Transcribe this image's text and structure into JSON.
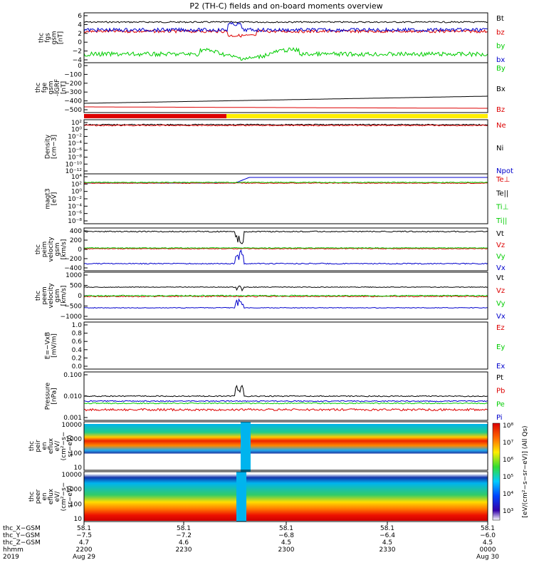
{
  "title": "P2 (TH-C) fields and on-board moments overview",
  "colors": {
    "black": "#000000",
    "red": "#dd0000",
    "green": "#00cc00",
    "blue": "#0000cc",
    "yellow": "#ffee00"
  },
  "panels": [
    {
      "ylabel": [
        "thc",
        "fgs",
        "gsm",
        "[nT]"
      ],
      "ticks": [
        "6",
        "4",
        "2",
        "0",
        "−2",
        "−4"
      ],
      "legend": [
        {
          "t": "Bt",
          "c": "black"
        },
        {
          "t": "bz",
          "c": "red"
        },
        {
          "t": "by",
          "c": "green"
        },
        {
          "t": "bx",
          "c": "blue"
        }
      ]
    },
    {
      "ylabel": [
        "thc",
        "fge",
        "gsm",
        "-IGRF",
        "[nT]"
      ],
      "ticks": [
        "0",
        "−100",
        "−200",
        "−300",
        "−400",
        "−500"
      ],
      "legend": [
        {
          "t": "By",
          "c": "green"
        },
        {
          "t": "Bx",
          "c": "black"
        },
        {
          "t": "Bz",
          "c": "red"
        }
      ]
    },
    {
      "ylabel": [
        "Density",
        "[cm−3]"
      ],
      "ticks": [
        "10²",
        "10⁰",
        "10⁻²",
        "10⁻⁴",
        "10⁻⁶",
        "10⁻⁸",
        "10⁻¹⁰",
        "10⁻¹²"
      ],
      "legend": [
        {
          "t": "Ne",
          "c": "red"
        },
        {
          "t": "Ni",
          "c": "black"
        },
        {
          "t": "Npot",
          "c": "blue"
        }
      ]
    },
    {
      "ylabel": [
        "magt3",
        "[eV]"
      ],
      "ticks": [
        "10⁴",
        "10²",
        "10⁰",
        "10⁻²",
        "10⁻⁴",
        "10⁻⁶",
        "10⁻⁸"
      ],
      "legend": [
        {
          "t": "Te⊥",
          "c": "red"
        },
        {
          "t": "Te||",
          "c": "black"
        },
        {
          "t": "Ti⊥",
          "c": "green"
        },
        {
          "t": "Ti||",
          "c": "green"
        }
      ]
    },
    {
      "ylabel": [
        "thc",
        "peim",
        "velocity",
        "gsm",
        "[km/s]"
      ],
      "ticks": [
        "400",
        "200",
        "0",
        "−200",
        "−400"
      ],
      "legend": [
        {
          "t": "Vt",
          "c": "black"
        },
        {
          "t": "Vz",
          "c": "red"
        },
        {
          "t": "Vy",
          "c": "green"
        },
        {
          "t": "Vx",
          "c": "blue"
        }
      ]
    },
    {
      "ylabel": [
        "thc",
        "peem",
        "velocity",
        "gsm",
        "[km/s]"
      ],
      "ticks": [
        "1000",
        "500",
        "0",
        "−500",
        "−1000"
      ],
      "legend": [
        {
          "t": "Vt",
          "c": "black"
        },
        {
          "t": "Vz",
          "c": "red"
        },
        {
          "t": "Vy",
          "c": "green"
        },
        {
          "t": "Vx",
          "c": "blue"
        }
      ]
    },
    {
      "ylabel": [
        "E=−VxB",
        "[mV/m]"
      ],
      "ticks": [
        "1.0",
        "0.8",
        "0.6",
        "0.4",
        "0.2",
        "0.0"
      ],
      "legend": [
        {
          "t": "Ez",
          "c": "red"
        },
        {
          "t": "Ey",
          "c": "green"
        },
        {
          "t": "Ex",
          "c": "blue"
        }
      ]
    },
    {
      "ylabel": [
        "Pressure",
        "[nPa]"
      ],
      "ticks": [
        "0.100",
        "0.010",
        "0.001"
      ],
      "legend": [
        {
          "t": "Pt",
          "c": "black"
        },
        {
          "t": "Pb",
          "c": "red"
        },
        {
          "t": "Pe",
          "c": "green"
        },
        {
          "t": "Pi",
          "c": "blue"
        }
      ]
    },
    {
      "ylabel": [
        "thc",
        "peir",
        "en",
        "eflux",
        "eV/",
        "(cm²−s−",
        "sr−eV)"
      ],
      "ticks": [
        "10000",
        "1000",
        "100",
        "10"
      ],
      "legend": []
    },
    {
      "ylabel": [
        "thc",
        "peer",
        "en",
        "eflux",
        "eV/",
        "(cm²−s−",
        "sr−eV)"
      ],
      "ticks": [
        "10000",
        "1000",
        "100",
        "10"
      ],
      "legend": []
    }
  ],
  "colorbar_label": "[eV/(cm²−s−sr−eV)] (All Qs)",
  "colorbar_ticks": [
    "10⁸",
    "10⁷",
    "10⁶",
    "10⁵",
    "10⁴",
    "10³"
  ],
  "bottom": {
    "rows": [
      "thc_X−GSM",
      "thc_Y−GSM",
      "thc_Z−GSM",
      "hhmm",
      "2019"
    ],
    "cols": [
      [
        "58.1",
        "−7.5",
        "4.7",
        "2200",
        "Aug 29"
      ],
      [
        "58.1",
        "−7.2",
        "4.6",
        "2230",
        ""
      ],
      [
        "58.1",
        "−6.8",
        "4.5",
        "2300",
        ""
      ],
      [
        "58.1",
        "−6.4",
        "4.5",
        "2330",
        ""
      ],
      [
        "58.1",
        "−6.0",
        "4.5",
        "0000",
        "Aug 30"
      ]
    ]
  },
  "chart_data": {
    "type": "line",
    "x_range": [
      "2019-08-29 22:00",
      "2019-08-30 00:00"
    ],
    "panel_1_ylim": [
      -4,
      6
    ],
    "panel_2_ylim": [
      -550,
      0
    ],
    "panel_5_ylim": [
      -400,
      400
    ],
    "panel_6_ylim": [
      -1000,
      1000
    ],
    "notes": "time-series overview; spectrograms in last two panels"
  }
}
